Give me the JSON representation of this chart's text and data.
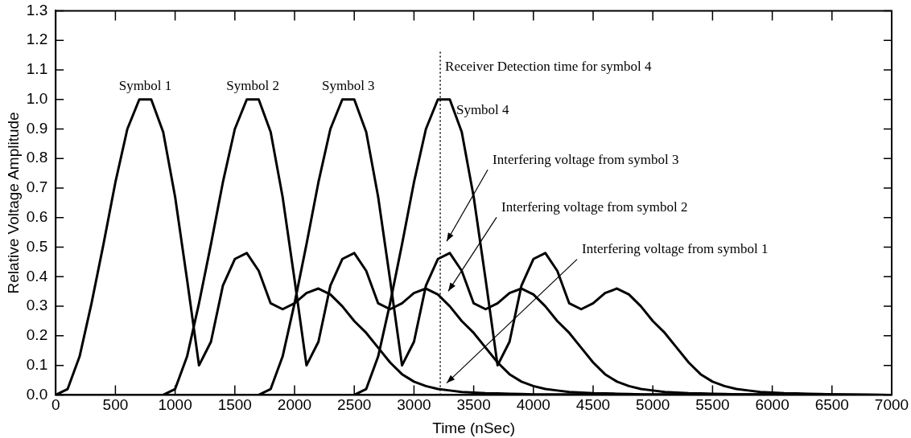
{
  "chart_data": {
    "type": "line",
    "xlabel": "Time (nSec)",
    "ylabel": "Relative Voltage Amplitude",
    "xlim": [
      0,
      7000
    ],
    "xticks": [
      0,
      500,
      1000,
      1500,
      2000,
      2500,
      3000,
      3500,
      4000,
      4500,
      5000,
      5500,
      6000,
      6500,
      7000
    ],
    "ylim": [
      0,
      1.3
    ],
    "yticks": [
      {
        "value": 0,
        "label": "0.0"
      },
      {
        "value": 0.1,
        "label": "0.1"
      },
      {
        "value": 0.2,
        "label": "0.2"
      },
      {
        "value": 0.3,
        "label": "0.3"
      },
      {
        "value": 0.4,
        "label": "0.4"
      },
      {
        "value": 0.5,
        "label": "0.5"
      },
      {
        "value": 0.6,
        "label": "0.6"
      },
      {
        "value": 0.7,
        "label": "0.7"
      },
      {
        "value": 0.8,
        "label": "0.8"
      },
      {
        "value": 0.9,
        "label": "0.9"
      },
      {
        "value": 1.0,
        "label": "1.0"
      },
      {
        "value": 1.1,
        "label": "1.1"
      },
      {
        "value": 1.2,
        "label": "1.2"
      },
      {
        "value": 1.3,
        "label": "1.3"
      }
    ],
    "marker": "none",
    "line_style": "solid",
    "series": [
      {
        "name": "Symbol 1",
        "color": "#000000",
        "x": [
          0,
          100,
          200,
          300,
          400,
          500,
          600,
          700,
          800,
          900,
          1000,
          1100,
          1200,
          1300,
          1400,
          1500,
          1600,
          1700,
          1800,
          1900,
          2000,
          2100,
          2200,
          2300,
          2400,
          2500,
          2600,
          2700,
          2800,
          2900,
          3000,
          3100,
          3200,
          3300,
          3400,
          3500,
          3600,
          3700,
          3800,
          3900,
          4000,
          7000
        ],
        "values": [
          0,
          0.02,
          0.13,
          0.31,
          0.51,
          0.72,
          0.9,
          1.0,
          1.0,
          0.89,
          0.67,
          0.39,
          0.1,
          0.18,
          0.37,
          0.46,
          0.48,
          0.42,
          0.31,
          0.29,
          0.31,
          0.345,
          0.36,
          0.34,
          0.3,
          0.25,
          0.21,
          0.16,
          0.11,
          0.07,
          0.045,
          0.03,
          0.02,
          0.015,
          0.01,
          0.008,
          0.006,
          0.005,
          0.004,
          0.003,
          0.002,
          0
        ]
      },
      {
        "name": "Symbol 2",
        "color": "#000000",
        "x": [
          900,
          1000,
          1100,
          1200,
          1300,
          1400,
          1500,
          1600,
          1700,
          1800,
          1900,
          2000,
          2100,
          2200,
          2300,
          2400,
          2500,
          2600,
          2700,
          2800,
          2900,
          3000,
          3100,
          3200,
          3300,
          3400,
          3500,
          3600,
          3700,
          3800,
          3900,
          4000,
          4100,
          4200,
          4300,
          4400,
          4500,
          4600,
          4700,
          4800,
          4900,
          7000
        ],
        "values": [
          0,
          0.02,
          0.13,
          0.31,
          0.51,
          0.72,
          0.9,
          1.0,
          1.0,
          0.89,
          0.67,
          0.39,
          0.1,
          0.18,
          0.37,
          0.46,
          0.48,
          0.42,
          0.31,
          0.29,
          0.31,
          0.345,
          0.36,
          0.34,
          0.3,
          0.25,
          0.21,
          0.16,
          0.11,
          0.07,
          0.045,
          0.03,
          0.02,
          0.015,
          0.01,
          0.008,
          0.006,
          0.005,
          0.004,
          0.003,
          0.002,
          0
        ]
      },
      {
        "name": "Symbol 3",
        "color": "#000000",
        "x": [
          1700,
          1800,
          1900,
          2000,
          2100,
          2200,
          2300,
          2400,
          2500,
          2600,
          2700,
          2800,
          2900,
          3000,
          3100,
          3200,
          3300,
          3400,
          3500,
          3600,
          3700,
          3800,
          3900,
          4000,
          4100,
          4200,
          4300,
          4400,
          4500,
          4600,
          4700,
          4800,
          4900,
          5000,
          5100,
          5200,
          5300,
          5400,
          5500,
          5600,
          5700,
          7000
        ],
        "values": [
          0,
          0.02,
          0.13,
          0.31,
          0.51,
          0.72,
          0.9,
          1.0,
          1.0,
          0.89,
          0.67,
          0.39,
          0.1,
          0.18,
          0.37,
          0.46,
          0.48,
          0.42,
          0.31,
          0.29,
          0.31,
          0.345,
          0.36,
          0.34,
          0.3,
          0.25,
          0.21,
          0.16,
          0.11,
          0.07,
          0.045,
          0.03,
          0.02,
          0.015,
          0.01,
          0.008,
          0.006,
          0.005,
          0.004,
          0.003,
          0.002,
          0
        ]
      },
      {
        "name": "Symbol 4",
        "color": "#000000",
        "x": [
          2500,
          2600,
          2700,
          2800,
          2900,
          3000,
          3100,
          3200,
          3300,
          3400,
          3500,
          3600,
          3700,
          3800,
          3900,
          4000,
          4100,
          4200,
          4300,
          4400,
          4500,
          4600,
          4700,
          4800,
          4900,
          5000,
          5100,
          5200,
          5300,
          5400,
          5500,
          5600,
          5700,
          5800,
          5900,
          6000,
          6100,
          6200,
          6300,
          6400,
          6500,
          7000
        ],
        "values": [
          0,
          0.02,
          0.13,
          0.31,
          0.51,
          0.72,
          0.9,
          1.0,
          1.0,
          0.89,
          0.67,
          0.39,
          0.1,
          0.18,
          0.37,
          0.46,
          0.48,
          0.42,
          0.31,
          0.29,
          0.31,
          0.345,
          0.36,
          0.34,
          0.3,
          0.25,
          0.21,
          0.16,
          0.11,
          0.07,
          0.045,
          0.03,
          0.02,
          0.015,
          0.01,
          0.008,
          0.006,
          0.005,
          0.004,
          0.003,
          0.002,
          0
        ]
      }
    ],
    "ref_lines": [
      {
        "axis": "x",
        "value": 3220,
        "label": "Receiver Detection time for symbol 4",
        "color": "#000000",
        "line_style": "dotted"
      }
    ],
    "annotations": [
      "Interfering voltage from symbol 3",
      "Interfering voltage from symbol 2",
      "Interfering voltage from symbol 1"
    ]
  }
}
